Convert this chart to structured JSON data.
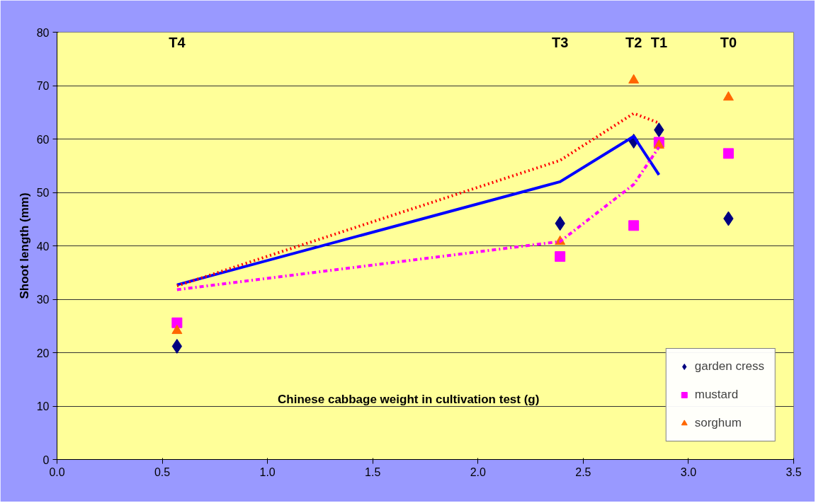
{
  "chart_data": {
    "type": "scatter",
    "xlabel": "Chinese cabbage weight in cultivation test (g)",
    "ylabel": "Shoot length (mm)",
    "xlim": [
      0,
      3.5
    ],
    "xticks": [
      {
        "value": 0,
        "label": "0.0"
      },
      {
        "value": 0.5,
        "label": "0.5"
      },
      {
        "value": 1,
        "label": "1.0"
      },
      {
        "value": 1.5,
        "label": "1.5"
      },
      {
        "value": 2,
        "label": "2.0"
      },
      {
        "value": 2.5,
        "label": "2.5"
      },
      {
        "value": 3,
        "label": "3.0"
      },
      {
        "value": 3.5,
        "label": "3.5"
      }
    ],
    "ylim": [
      0,
      80
    ],
    "yticks": [
      0,
      10,
      20,
      30,
      40,
      50,
      60,
      70,
      80
    ],
    "grid": "y",
    "legend": "bottom right",
    "series": [
      {
        "name": "garden cress",
        "marker": "diamond",
        "color": "#000080",
        "x": [
          0.57,
          2.39,
          2.74,
          2.86,
          3.19
        ],
        "values": [
          21.2,
          44.2,
          59.6,
          61.7,
          45.1
        ]
      },
      {
        "name": "mustard",
        "marker": "square",
        "color": "#ff00ff",
        "x": [
          0.57,
          2.39,
          2.74,
          2.86,
          3.19
        ],
        "values": [
          25.6,
          38.0,
          43.8,
          59.4,
          57.3
        ]
      },
      {
        "name": "sorghum",
        "marker": "triangle",
        "color": "#ff6600",
        "x": [
          0.57,
          2.39,
          2.74,
          2.86,
          3.19
        ],
        "values": [
          24.1,
          40.8,
          71.0,
          58.8,
          67.8
        ]
      },
      {
        "type": "line",
        "line_style": "solid",
        "color": "#0000ff",
        "x": [
          0.57,
          2.39,
          2.74,
          2.86
        ],
        "values": [
          32.7,
          52.0,
          60.5,
          53.3
        ]
      },
      {
        "type": "line",
        "line_style": "dotted",
        "color": "#ff0000",
        "x": [
          0.57,
          2.39,
          2.74,
          2.86
        ],
        "values": [
          32.5,
          56.0,
          64.8,
          63.0
        ]
      },
      {
        "type": "line",
        "line_style": "dashdot",
        "color": "#ff00ff",
        "x": [
          0.57,
          2.39,
          2.74,
          2.86
        ],
        "values": [
          31.8,
          40.8,
          51.5,
          58.5
        ]
      }
    ],
    "annotations": [
      "T4",
      "T3",
      "T2",
      "T1",
      "T0"
    ]
  }
}
